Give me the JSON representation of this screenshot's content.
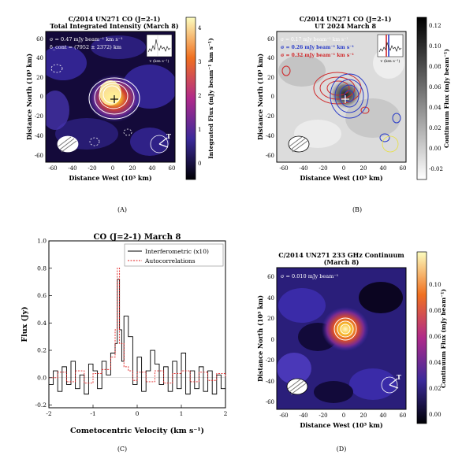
{
  "panels": {
    "A": {
      "caption": "(A)",
      "title": "C/2014 UN271 CO (J=2-1)",
      "subtitle": "Total Integrated Intensity (March 8)",
      "annot": [
        "σ = 0.47 mJy beam⁻¹ km s⁻¹",
        "δ_cont = (7952 ± 2372) km"
      ],
      "xlabel": "Distance West (10³ km)",
      "ylabel": "Distance North (10³ km)",
      "xticks": [
        "-60",
        "-40",
        "-20",
        "0",
        "20",
        "40",
        "60"
      ],
      "yticks": [
        "60",
        "40",
        "20",
        "0",
        "-20",
        "-40",
        "-60"
      ],
      "cbar_label": "Integrated Flux (mJy beam⁻¹ km s⁻¹)",
      "cbar_ticks": [
        "4",
        "3",
        "2",
        "1",
        "0"
      ],
      "inset_xlabel": "v (km s⁻¹)",
      "inset_ticks": [
        "-2",
        "0",
        "2"
      ],
      "sun_label": "T"
    },
    "B": {
      "caption": "(B)",
      "title": "C/2014 UN271 CO (J=2-1)",
      "subtitle": "UT 2024 March 8",
      "annot": [
        "σ = 0.17 mJy beam⁻¹ km s⁻¹",
        "σ = 0.26 mJy beam⁻¹ km s⁻¹",
        "σ = 0.32 mJy beam⁻¹ km s⁻¹"
      ],
      "xlabel": "Distance West (10³ km)",
      "ylabel": "Distance North (10³ km)",
      "xticks": [
        "-60",
        "-40",
        "-20",
        "0",
        "20",
        "40",
        "60"
      ],
      "yticks": [
        "60",
        "40",
        "20",
        "0",
        "-20",
        "-40",
        "-60"
      ],
      "cbar_label": "Continuum Flux (mJy beam⁻¹)",
      "cbar_ticks": [
        "0.12",
        "0.10",
        "0.08",
        "0.06",
        "0.04",
        "0.02",
        "0.00",
        "-0.02"
      ],
      "inset_xlabel": "v (km s⁻¹)",
      "inset_ticks": [
        "-2",
        "0",
        "2"
      ]
    },
    "C": {
      "caption": "(C)",
      "title": "CO (J=2-1) March 8",
      "xlabel": "Cometocentric Velocity (km s⁻¹)",
      "ylabel": "Flux (Jy)",
      "xticks": [
        "-2",
        "-1",
        "0",
        "1",
        "2"
      ],
      "yticks": [
        "1.0",
        "0.8",
        "0.6",
        "0.4",
        "0.2",
        "0.0",
        "-0.2"
      ],
      "legend": [
        "Interferometric (x10)",
        "Autocorrelations"
      ]
    },
    "D": {
      "caption": "(D)",
      "title": "C/2014 UN271 233 GHz Continuum",
      "subtitle": "(March 8)",
      "annot": [
        "σ = 0.010 mJy beam⁻¹"
      ],
      "xlabel": "Distance West (10³ km)",
      "ylabel": "Distance North (10³ km)",
      "xticks": [
        "-60",
        "-40",
        "-20",
        "0",
        "20",
        "40",
        "60"
      ],
      "yticks": [
        "60",
        "40",
        "20",
        "0",
        "-20",
        "-40",
        "-60"
      ],
      "cbar_label": "Continuum Flux (mJy beam⁻¹)",
      "cbar_ticks": [
        "0.10",
        "0.08",
        "0.06",
        "0.04",
        "0.02",
        "0.00"
      ],
      "sun_label": "T"
    }
  },
  "colors": {
    "map_dark": "#0b0521",
    "map_mid": "#3a2ba8",
    "map_hot": "#f0a020",
    "contour_white": "#ffffff",
    "red": "#d0282a",
    "blue": "#2a3cc8",
    "line_black": "#000000",
    "line_red": "#e02020"
  },
  "chart_data": {
    "type": "line",
    "title": "CO (J=2-1) March 8",
    "xlabel": "Cometocentric Velocity (km s⁻¹)",
    "ylabel": "Flux (Jy)",
    "xlim": [
      -2,
      2
    ],
    "ylim": [
      -0.22,
      1.0
    ],
    "legend_position": "top-right",
    "series": [
      {
        "name": "Interferometric (x10)",
        "style": "solid-step",
        "x": [
          -2.0,
          -1.9,
          -1.8,
          -1.7,
          -1.6,
          -1.5,
          -1.4,
          -1.3,
          -1.2,
          -1.1,
          -1.0,
          -0.9,
          -0.8,
          -0.7,
          -0.6,
          -0.5,
          -0.45,
          -0.4,
          -0.35,
          -0.3,
          -0.2,
          -0.1,
          0.0,
          0.1,
          0.2,
          0.3,
          0.4,
          0.5,
          0.6,
          0.7,
          0.8,
          0.9,
          1.0,
          1.1,
          1.2,
          1.3,
          1.4,
          1.5,
          1.6,
          1.7,
          1.8,
          1.9,
          2.0
        ],
        "y": [
          -0.05,
          0.05,
          -0.1,
          0.08,
          -0.05,
          0.12,
          -0.08,
          0.02,
          -0.12,
          0.1,
          0.05,
          -0.08,
          0.12,
          0.02,
          0.18,
          0.25,
          0.72,
          0.35,
          0.12,
          0.45,
          0.3,
          -0.05,
          0.15,
          -0.1,
          0.05,
          0.2,
          0.1,
          -0.05,
          0.08,
          -0.1,
          0.12,
          -0.08,
          0.18,
          -0.12,
          0.05,
          -0.08,
          0.08,
          -0.1,
          0.05,
          -0.12,
          0.02,
          -0.08,
          0.05
        ]
      },
      {
        "name": "Autocorrelations",
        "style": "dashed-step",
        "x": [
          -2.0,
          -1.8,
          -1.6,
          -1.4,
          -1.2,
          -1.0,
          -0.8,
          -0.6,
          -0.5,
          -0.45,
          -0.4,
          -0.3,
          -0.2,
          -0.1,
          0.0,
          0.2,
          0.4,
          0.6,
          0.8,
          1.0,
          1.2,
          1.4,
          1.6,
          1.8,
          2.0
        ],
        "y": [
          0.0,
          0.04,
          -0.03,
          0.05,
          -0.04,
          0.03,
          0.06,
          0.15,
          0.35,
          0.8,
          0.25,
          0.08,
          0.05,
          -0.02,
          0.04,
          -0.03,
          0.05,
          -0.04,
          0.03,
          0.05,
          -0.03,
          0.04,
          -0.02,
          0.03,
          0.0
        ]
      }
    ]
  }
}
